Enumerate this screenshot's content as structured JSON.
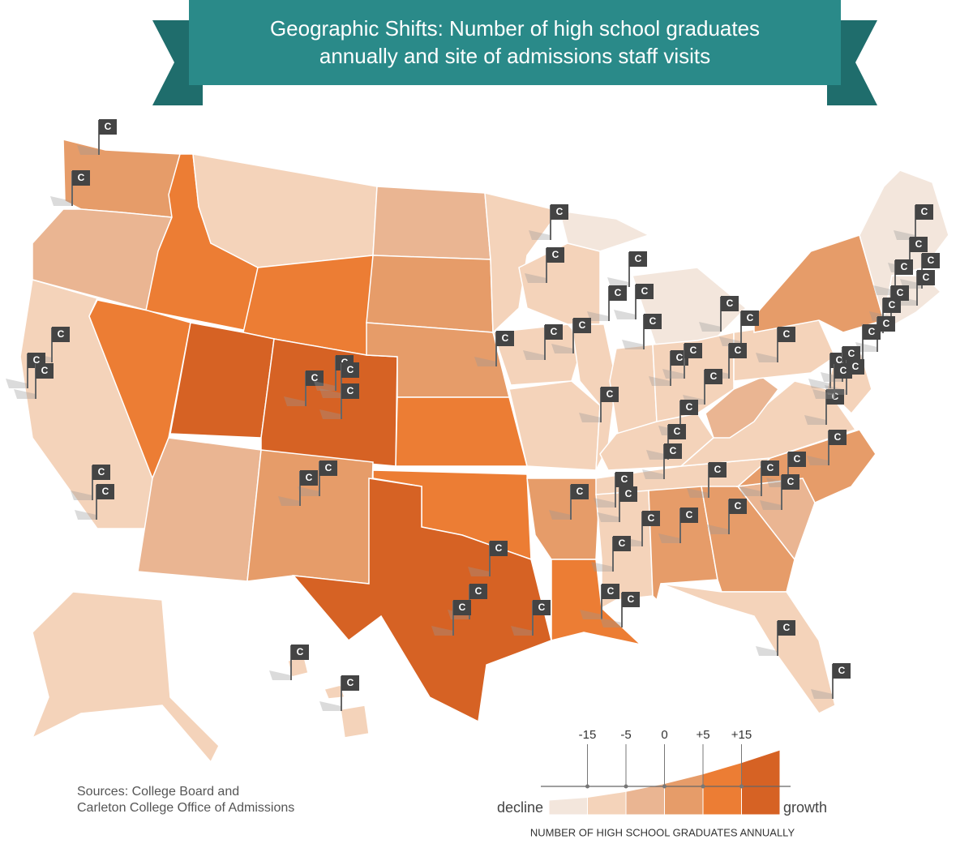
{
  "title": [
    "Geographic Shifts: Number of high school graduates",
    "annually and site of admissions staff visits"
  ],
  "flag_label": "C",
  "legend": {
    "ticks": [
      -15,
      -5,
      0,
      {
        "value": 5,
        "label": "+5"
      },
      {
        "value": 15,
        "label": "+15"
      }
    ],
    "low_label": "decline",
    "high_label": "growth",
    "caption": "NUMBER OF HIGH SCHOOL GRADUATES ANNUALLY",
    "colors": [
      "#f3e6dc",
      "#f4d3ba",
      "#eab592",
      "#e69c69",
      "#ec7d34",
      "#d66224"
    ]
  },
  "sources": [
    "Sources: College Board and",
    "Carleton College Office of Admissions"
  ]
}
